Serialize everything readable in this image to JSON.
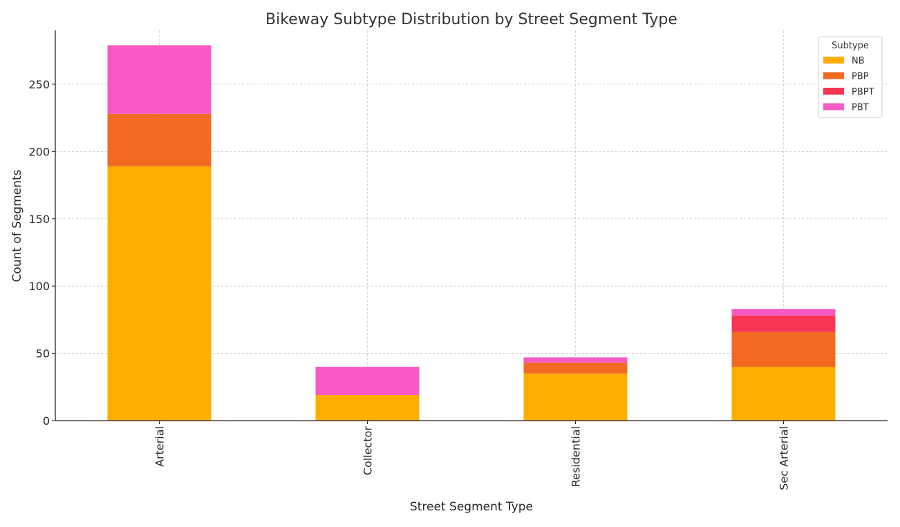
{
  "chart_data": {
    "type": "bar",
    "stacked": true,
    "title": "Bikeway Subtype Distribution by Street Segment Type",
    "xlabel": "Street Segment Type",
    "ylabel": "Count of Segments",
    "categories": [
      "Arterial",
      "Collector",
      "Residential",
      "Sec Arterial"
    ],
    "series": [
      {
        "name": "NB",
        "color": "#FFAE00",
        "values": [
          189,
          19,
          35,
          40
        ]
      },
      {
        "name": "PBP",
        "color": "#F26A22",
        "values": [
          39,
          0,
          8,
          26
        ]
      },
      {
        "name": "PBPT",
        "color": "#F73555",
        "values": [
          0,
          0,
          0,
          12
        ]
      },
      {
        "name": "PBT",
        "color": "#F75AC3",
        "values": [
          51,
          21,
          4,
          5
        ]
      }
    ],
    "ylim": [
      0,
      290
    ],
    "yticks": [
      0,
      50,
      100,
      150,
      200,
      250
    ],
    "grid": true,
    "legend": {
      "title": "Subtype",
      "placement": "top-right"
    }
  }
}
